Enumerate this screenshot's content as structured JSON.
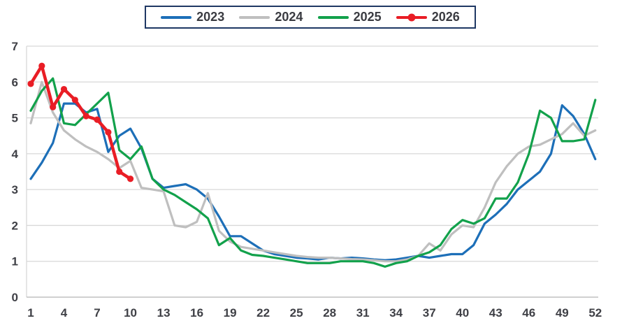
{
  "legend": {
    "items": [
      {
        "label": "2023",
        "color": "#1D6FB8",
        "marker": false
      },
      {
        "label": "2024",
        "color": "#BFBFBF",
        "marker": false
      },
      {
        "label": "2025",
        "color": "#12A14B",
        "marker": false
      },
      {
        "label": "2026",
        "color": "#E91D25",
        "marker": true
      }
    ],
    "border_color": "#1F3864"
  },
  "chart_data": {
    "type": "line",
    "x_axis": {
      "unit": "week",
      "min": 1,
      "max": 52,
      "tick_labels": [
        1,
        4,
        7,
        10,
        13,
        16,
        19,
        22,
        25,
        28,
        31,
        34,
        37,
        40,
        43,
        46,
        49,
        52
      ]
    },
    "y_axis": {
      "min": 0,
      "max": 7,
      "tick_labels": [
        0,
        1,
        2,
        3,
        4,
        5,
        6,
        7
      ]
    },
    "grid": true,
    "legend_position": "top-center",
    "title": "",
    "series": [
      {
        "name": "2023",
        "color": "#1D6FB8",
        "marker": false,
        "start_week": 1,
        "values": [
          3.3,
          3.75,
          4.3,
          5.4,
          5.4,
          5.15,
          5.25,
          4.05,
          4.5,
          4.7,
          4.15,
          3.3,
          3.05,
          3.1,
          3.15,
          3.0,
          2.75,
          2.25,
          1.7,
          1.7,
          1.5,
          1.3,
          1.2,
          1.15,
          1.1,
          1.08,
          1.05,
          1.1,
          1.08,
          1.1,
          1.08,
          1.05,
          1.03,
          1.05,
          1.1,
          1.15,
          1.1,
          1.15,
          1.2,
          1.2,
          1.45,
          2.05,
          2.3,
          2.6,
          3.0,
          3.25,
          3.5,
          4.0,
          5.35,
          5.05,
          4.55,
          3.85
        ]
      },
      {
        "name": "2024",
        "color": "#BFBFBF",
        "marker": false,
        "start_week": 1,
        "values": [
          4.85,
          6.0,
          5.15,
          4.65,
          4.4,
          4.2,
          4.05,
          3.85,
          3.6,
          3.8,
          3.05,
          3.0,
          2.95,
          2.0,
          1.95,
          2.1,
          2.9,
          1.85,
          1.55,
          1.4,
          1.35,
          1.3,
          1.25,
          1.2,
          1.15,
          1.12,
          1.1,
          1.1,
          1.08,
          1.06,
          1.05,
          1.03,
          1.0,
          1.0,
          1.05,
          1.15,
          1.5,
          1.3,
          1.75,
          2.0,
          1.95,
          2.5,
          3.2,
          3.65,
          4.0,
          4.2,
          4.25,
          4.4,
          4.55,
          4.85,
          4.5,
          4.65
        ]
      },
      {
        "name": "2025",
        "color": "#12A14B",
        "marker": false,
        "start_week": 1,
        "values": [
          5.2,
          5.75,
          6.1,
          4.85,
          4.8,
          5.1,
          5.4,
          5.7,
          4.1,
          3.85,
          4.2,
          3.3,
          3.0,
          2.85,
          2.65,
          2.45,
          2.2,
          1.45,
          1.65,
          1.3,
          1.18,
          1.15,
          1.1,
          1.05,
          1.0,
          0.95,
          0.95,
          0.95,
          1.0,
          1.0,
          1.0,
          0.95,
          0.85,
          0.95,
          1.0,
          1.15,
          1.25,
          1.45,
          1.9,
          2.15,
          2.05,
          2.2,
          2.75,
          2.75,
          3.2,
          4.0,
          5.2,
          5.0,
          4.35,
          4.35,
          4.4,
          5.5
        ]
      },
      {
        "name": "2026",
        "color": "#E91D25",
        "marker": true,
        "start_week": 1,
        "values": [
          5.95,
          6.45,
          5.3,
          5.8,
          5.5,
          5.05,
          4.95,
          4.6,
          3.5,
          3.3
        ]
      }
    ],
    "colors": {
      "grid": "#D8D8D8",
      "axis": "#C0C0C0",
      "tick_label": "#3F4046"
    }
  }
}
